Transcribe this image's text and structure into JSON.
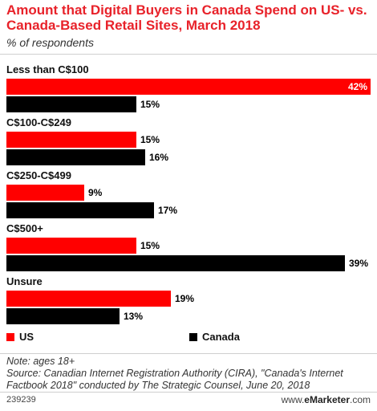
{
  "title": "Amount that Digital Buyers in Canada Spend on US- vs. Canada-Based Retail Sites, March 2018",
  "subtitle": "% of respondents",
  "legend": {
    "us": "US",
    "canada": "Canada"
  },
  "colors": {
    "us": "#ff0000",
    "canada": "#000000",
    "title": "#e8222a"
  },
  "note": "Note: ages 18+",
  "source_line1": "Source: Canadian Internet Registration Authority (CIRA), \"Canada's Internet",
  "source_line2": "Factbook 2018\" conducted by The Strategic Counsel, June 20, 2018",
  "chart_id": "239239",
  "credit_prefix": "www.",
  "credit_brand": "eMarketer",
  "credit_suffix": ".com",
  "chart_data": {
    "type": "bar",
    "orientation": "horizontal",
    "categories": [
      "Less than C$100",
      "C$100-C$249",
      "C$250-C$499",
      "C$500+",
      "Unsure"
    ],
    "series": [
      {
        "name": "US",
        "values": [
          42,
          15,
          9,
          15,
          19
        ],
        "labels": [
          "42%",
          "15%",
          "9%",
          "15%",
          "19%"
        ]
      },
      {
        "name": "Canada",
        "values": [
          15,
          16,
          17,
          39,
          13
        ],
        "labels": [
          "15%",
          "16%",
          "17%",
          "39%",
          "13%"
        ]
      }
    ],
    "xlim": [
      0,
      42
    ],
    "grid": false,
    "legend_position": "bottom-left"
  }
}
